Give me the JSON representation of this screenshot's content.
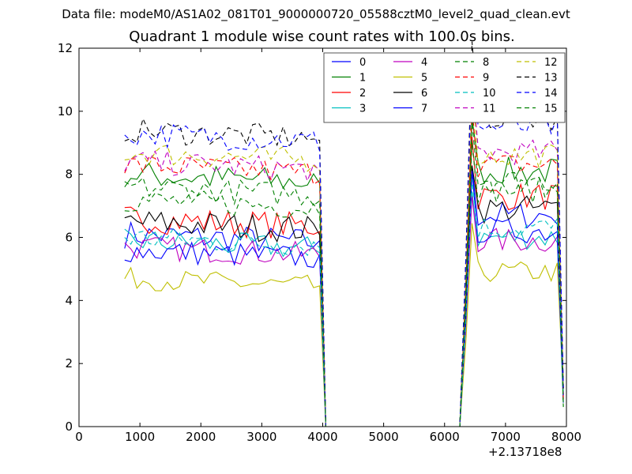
{
  "suptitle": "Data file: modeM0/AS1A02_081T01_9000000720_05588cztM0_level2_quad_clean.evt",
  "chart_data": {
    "type": "line",
    "title": "Quadrant 1 module wise count rates with 100.0s bins.",
    "xlabel": "",
    "ylabel": "",
    "x_offset_label": "+2.13718e8",
    "xlim": [
      0,
      8000
    ],
    "ylim": [
      0,
      12
    ],
    "xticks": [
      0,
      1000,
      2000,
      3000,
      4000,
      5000,
      6000,
      7000,
      8000
    ],
    "yticks": [
      0,
      2,
      4,
      6,
      8,
      10,
      12
    ],
    "legend": {
      "position": "top-right",
      "ncol": 4
    },
    "segment1": {
      "x_start": 750,
      "x_end": 3850,
      "step": 100
    },
    "segment2": {
      "x_start": 6450,
      "x_end": 7850,
      "step": 100
    },
    "transitions": [
      [
        3850,
        3950,
        4050,
        4150,
        6250,
        6350,
        6450
      ],
      [
        7850,
        7950
      ]
    ],
    "series": [
      {
        "name": "0",
        "color": "#0000ff",
        "dash": "solid",
        "level1": 6.1,
        "level2": 6.7,
        "var": 0.45
      },
      {
        "name": "1",
        "color": "#008000",
        "dash": "solid",
        "level1": 8.0,
        "level2": 8.1,
        "var": 0.45
      },
      {
        "name": "2",
        "color": "#ff0000",
        "dash": "solid",
        "level1": 6.6,
        "level2": 7.3,
        "var": 0.45
      },
      {
        "name": "3",
        "color": "#00bfbf",
        "dash": "solid",
        "level1": 5.9,
        "level2": 6.0,
        "var": 0.4
      },
      {
        "name": "4",
        "color": "#bf00bf",
        "dash": "solid",
        "level1": 5.7,
        "level2": 5.9,
        "var": 0.4
      },
      {
        "name": "5",
        "color": "#bfbf00",
        "dash": "solid",
        "level1": 4.7,
        "level2": 4.9,
        "var": 0.35
      },
      {
        "name": "6",
        "color": "#000000",
        "dash": "solid",
        "level1": 6.5,
        "level2": 6.9,
        "var": 0.45
      },
      {
        "name": "7",
        "color": "#0000ff",
        "dash": "solid",
        "level1": 5.6,
        "level2": 6.2,
        "var": 0.4
      },
      {
        "name": "8",
        "color": "#008000",
        "dash": "dashed",
        "level1": 7.2,
        "level2": 7.5,
        "var": 0.4
      },
      {
        "name": "9",
        "color": "#ff0000",
        "dash": "dashed",
        "level1": 8.3,
        "level2": 8.3,
        "var": 0.4
      },
      {
        "name": "10",
        "color": "#00bfbf",
        "dash": "dashed",
        "level1": 6.0,
        "level2": 6.3,
        "var": 0.4
      },
      {
        "name": "11",
        "color": "#bf00bf",
        "dash": "dashed",
        "level1": 8.4,
        "level2": 8.7,
        "var": 0.4
      },
      {
        "name": "12",
        "color": "#bfbf00",
        "dash": "dashed",
        "level1": 8.7,
        "level2": 8.6,
        "var": 0.4
      },
      {
        "name": "13",
        "color": "#000000",
        "dash": "dashed",
        "level1": 9.4,
        "level2": 9.8,
        "var": 0.4
      },
      {
        "name": "14",
        "color": "#0000ff",
        "dash": "dashed",
        "level1": 9.3,
        "level2": 9.5,
        "var": 0.4
      },
      {
        "name": "15",
        "color": "#008000",
        "dash": "dashed",
        "level1": 7.6,
        "level2": 7.8,
        "var": 0.4
      }
    ]
  }
}
